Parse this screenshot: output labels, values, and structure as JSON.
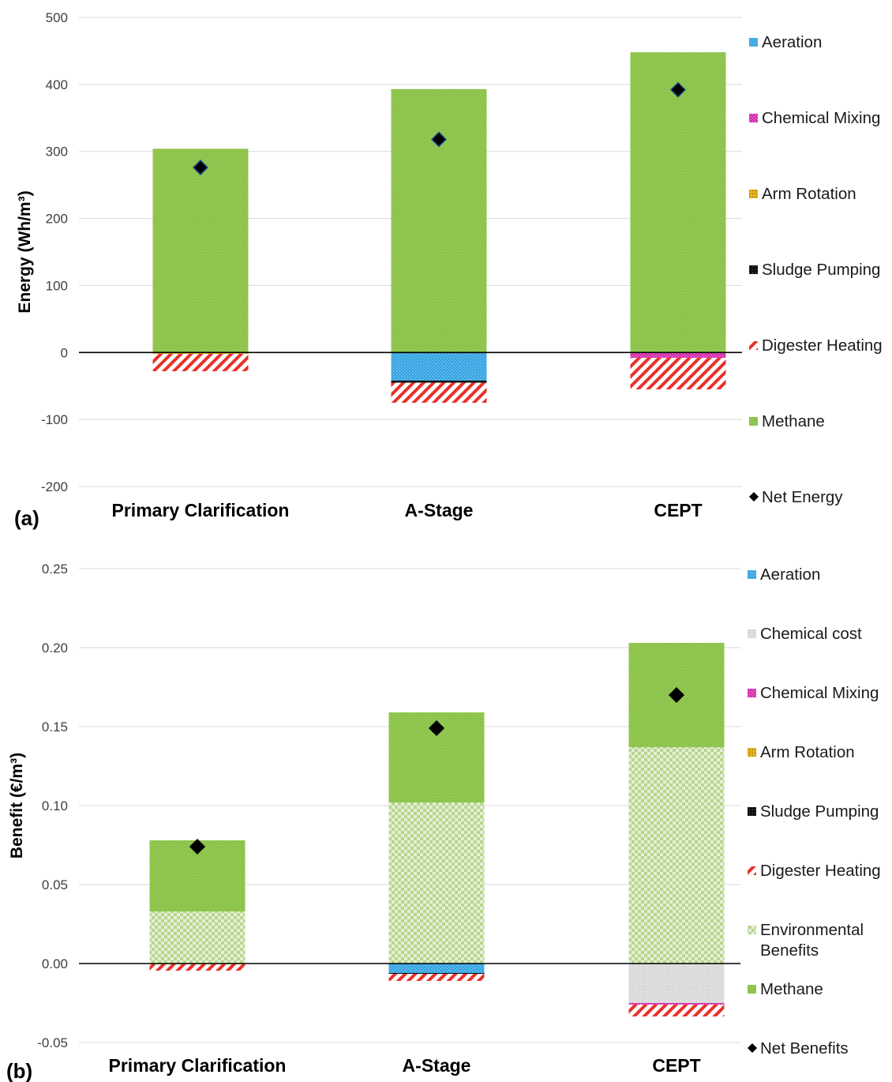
{
  "chart_data": [
    {
      "type": "bar",
      "stacked": true,
      "panel_label": "(a)",
      "title": "",
      "xlabel": "",
      "ylabel": "Energy (Wh/m³)",
      "ylim": [
        -200,
        500
      ],
      "yticks": [
        "500",
        "400",
        "300",
        "200",
        "100",
        "0",
        "-100",
        "-200"
      ],
      "grid": true,
      "legend_position": "right",
      "categories": [
        "Primary Clarification",
        "A-Stage",
        "CEPT"
      ],
      "series": [
        {
          "name": "Aeration",
          "color": "#3aa6e3",
          "values": [
            0,
            -42,
            0
          ]
        },
        {
          "name": "Chemical Mixing",
          "color": "#d633b0",
          "values": [
            0,
            0,
            -8
          ]
        },
        {
          "name": "Arm Rotation",
          "color": "#e0b020",
          "values": [
            -2,
            0,
            0
          ]
        },
        {
          "name": "Sludge Pumping",
          "color": "#111111",
          "values": [
            0,
            -3,
            0
          ]
        },
        {
          "name": "Digester Heating",
          "color": "#e8312a",
          "values": [
            -26,
            -30,
            -47
          ]
        },
        {
          "name": "Methane",
          "color": "#8bc34a",
          "values": [
            304,
            393,
            448
          ]
        }
      ],
      "net": {
        "name": "Net Energy",
        "values": [
          276,
          318,
          392
        ]
      }
    },
    {
      "type": "bar",
      "stacked": true,
      "panel_label": "(b)",
      "title": "",
      "xlabel": "",
      "ylabel": "Benefit (€/m³)",
      "ylim": [
        -0.05,
        0.25
      ],
      "yticks": [
        "0.25",
        "0.20",
        "0.15",
        "0.10",
        "0.05",
        "0.00",
        "-0.05"
      ],
      "grid": true,
      "legend_position": "right",
      "categories": [
        "Primary Clarification",
        "A-Stage",
        "CEPT"
      ],
      "series": [
        {
          "name": "Aeration",
          "color": "#3aa6e3",
          "values": [
            0,
            -0.006,
            0
          ]
        },
        {
          "name": "Chemical cost",
          "color": "#d6d6d6",
          "values": [
            0,
            0,
            -0.025
          ]
        },
        {
          "name": "Chemical Mixing",
          "color": "#d633b0",
          "values": [
            0,
            0,
            -0.001
          ]
        },
        {
          "name": "Arm Rotation",
          "color": "#e0b020",
          "values": [
            -0.0005,
            0,
            0
          ]
        },
        {
          "name": "Sludge Pumping",
          "color": "#111111",
          "values": [
            0,
            -0.0005,
            0
          ]
        },
        {
          "name": "Digester Heating",
          "color": "#e8312a",
          "values": [
            -0.004,
            -0.0045,
            -0.0075
          ]
        },
        {
          "name": "Environmental Benefits",
          "color": "#c5dea3",
          "values": [
            0.033,
            0.102,
            0.137
          ]
        },
        {
          "name": "Methane",
          "color": "#8bc34a",
          "values": [
            0.045,
            0.057,
            0.066
          ]
        }
      ],
      "net": {
        "name": "Net Benefits",
        "values": [
          0.074,
          0.149,
          0.17
        ]
      }
    }
  ]
}
